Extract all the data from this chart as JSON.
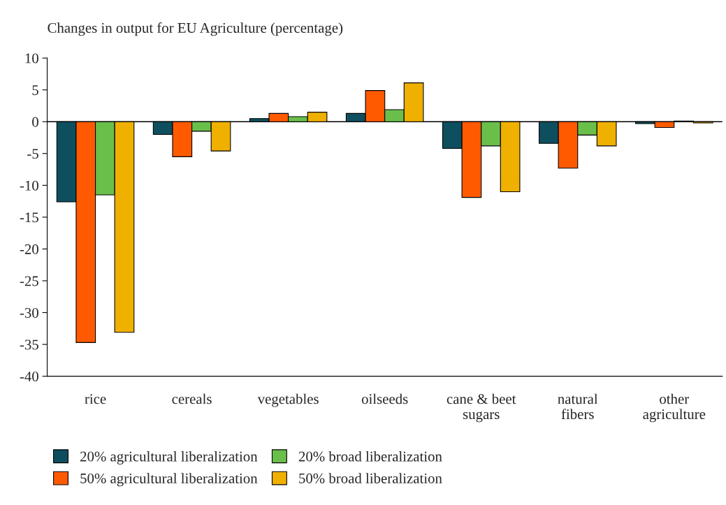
{
  "chart_data": {
    "type": "bar",
    "title": "Changes in output for EU Agriculture (percentage)",
    "categories": [
      "rice",
      "cereals",
      "vegetables",
      "oilseeds",
      "cane & beet\nsugars",
      "natural\nfibers",
      "other\nagriculture"
    ],
    "series": [
      {
        "name": "20% agricultural liberalization",
        "color": "#0e4f5f",
        "values": [
          -12.6,
          -2.0,
          0.5,
          1.3,
          -4.2,
          -3.4,
          -0.3
        ]
      },
      {
        "name": "50% agricultural liberalization",
        "color": "#ff5a00",
        "values": [
          -34.7,
          -5.5,
          1.3,
          4.9,
          -11.9,
          -7.3,
          -0.9
        ]
      },
      {
        "name": "20% broad liberalization",
        "color": "#6abf4b",
        "values": [
          -11.5,
          -1.5,
          0.8,
          1.9,
          -3.8,
          -2.1,
          0.1
        ]
      },
      {
        "name": "50% broad liberalization",
        "color": "#f0b000",
        "values": [
          -33.1,
          -4.6,
          1.5,
          6.1,
          -11.0,
          -3.8,
          -0.2
        ]
      }
    ],
    "ylim": [
      -40,
      10
    ],
    "yticks": [
      -40,
      -35,
      -30,
      -25,
      -20,
      -15,
      -10,
      -5,
      0,
      5,
      10
    ],
    "ref_lines": [
      {
        "axis": "y",
        "value": 0,
        "color": "#000000"
      }
    ],
    "grid": false,
    "legend": "bottom"
  }
}
